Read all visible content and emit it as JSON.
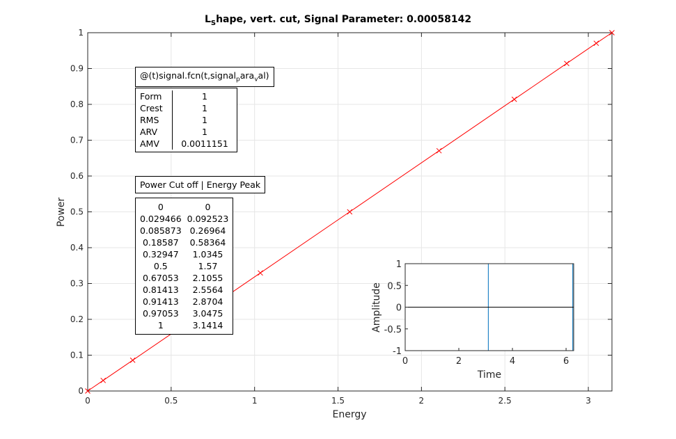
{
  "title_main": "L",
  "title_sub": "S",
  "title_rest": "hape, vert. cut, Signal Parameter: 0.00058142",
  "signal_box": {
    "prefix": "@(t)signal.fcn(t,signal",
    "sub1": "p",
    "mid": "ara",
    "sub2": "v",
    "suffix": "al)"
  },
  "stats": [
    {
      "key": "Form",
      "value": "1"
    },
    {
      "key": "Crest",
      "value": "1"
    },
    {
      "key": "RMS",
      "value": "1"
    },
    {
      "key": "ARV",
      "value": "1"
    },
    {
      "key": "AMV",
      "value": "0.0011151"
    }
  ],
  "pe_header": "Power Cut off | Energy Peak",
  "pe_rows": [
    [
      "0",
      "0"
    ],
    [
      "0.029466",
      "0.092523"
    ],
    [
      "0.085873",
      "0.26964"
    ],
    [
      "0.18587",
      "0.58364"
    ],
    [
      "0.32947",
      "1.0345"
    ],
    [
      "0.5",
      "1.57"
    ],
    [
      "0.67053",
      "2.1055"
    ],
    [
      "0.81413",
      "2.5564"
    ],
    [
      "0.91413",
      "2.8704"
    ],
    [
      "0.97053",
      "3.0475"
    ],
    [
      "1",
      "3.1414"
    ]
  ],
  "colors": {
    "line": "#ff0000",
    "marker": "#ff0000",
    "inset_signal": "#0072bd",
    "inset_zero": "#000000",
    "grid": "#e6e6e6"
  },
  "chart_data": [
    {
      "type": "line",
      "title": "L_Shape, vert. cut, Signal Parameter: 0.00058142",
      "xlabel": "Energy",
      "ylabel": "Power",
      "xlim": [
        0,
        3.1416
      ],
      "ylim": [
        0,
        1
      ],
      "xticks": [
        "0",
        "0.5",
        "1",
        "1.5",
        "2",
        "2.5",
        "3"
      ],
      "yticks": [
        "0",
        "0.1",
        "0.2",
        "0.3",
        "0.4",
        "0.5",
        "0.6",
        "0.7",
        "0.8",
        "0.9",
        "1"
      ],
      "grid": true,
      "series": [
        {
          "x": [
            0,
            0.092523,
            0.26964,
            0.58364,
            1.0345,
            1.57,
            2.1055,
            2.5564,
            2.8704,
            3.0475,
            3.1414
          ],
          "y": [
            0,
            0.029466,
            0.085873,
            0.18587,
            0.32947,
            0.5,
            0.67053,
            0.81413,
            0.91413,
            0.97053,
            1
          ]
        }
      ]
    },
    {
      "type": "line",
      "xlabel": "Time",
      "ylabel": "Amplitude",
      "xlim": [
        0,
        6.2832
      ],
      "ylim": [
        -1,
        1
      ],
      "xticks": [
        "0",
        "2",
        "4",
        "6"
      ],
      "yticks": [
        "-1",
        "-0.5",
        "0",
        "0.5",
        "1"
      ],
      "grid": false,
      "series": [
        {
          "x": [
            0,
            3.1,
            3.1,
            6.25,
            6.25
          ],
          "y": [
            1,
            1,
            -1,
            -1,
            1
          ]
        },
        {
          "x": [
            0,
            6.2832
          ],
          "y": [
            0,
            0
          ]
        }
      ]
    }
  ]
}
